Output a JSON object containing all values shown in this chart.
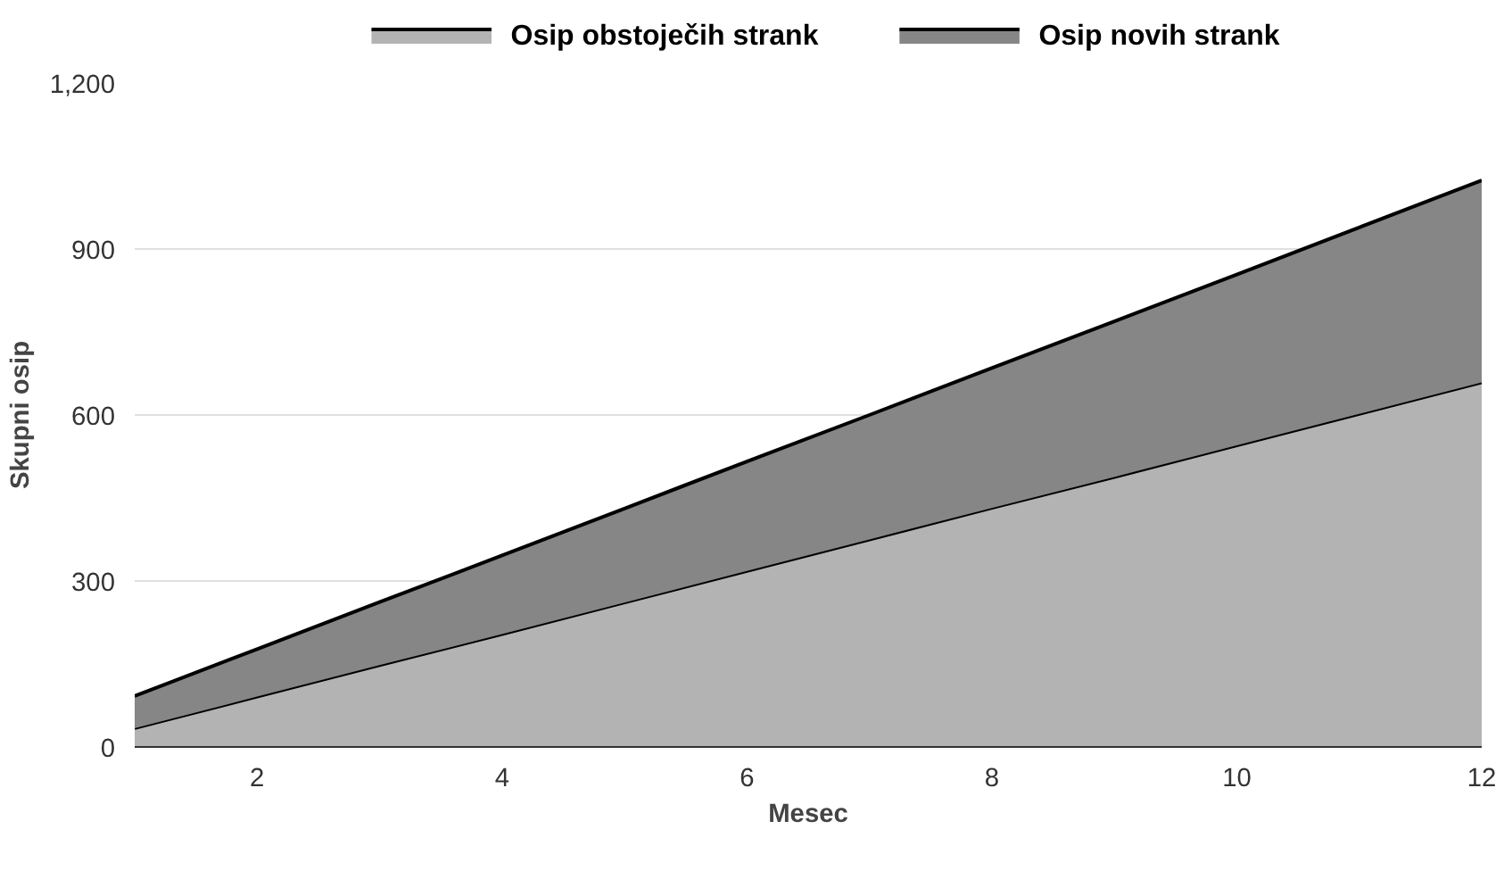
{
  "chart_data": {
    "type": "area",
    "stacked": true,
    "xlabel": "Mesec",
    "ylabel": "Skupni osip",
    "x": [
      1,
      2,
      3,
      4,
      5,
      6,
      7,
      8,
      9,
      10,
      11,
      12
    ],
    "series": [
      {
        "name": "Osip obstoječih strank",
        "color": "#b3b3b3",
        "values": [
          34,
          91,
          148,
          204,
          261,
          318,
          375,
          432,
          488,
          545,
          602,
          659
        ]
      },
      {
        "name": "Osip novih strank",
        "color": "#868686",
        "values": [
          58,
          86,
          114,
          142,
          170,
          198,
          225,
          253,
          281,
          309,
          337,
          365
        ]
      }
    ],
    "xlim": [
      1,
      12
    ],
    "xticks": [
      2,
      4,
      6,
      8,
      10,
      12
    ],
    "ylim": [
      0,
      1200
    ],
    "yticks": [
      0,
      300,
      600,
      900,
      {
        "value": 1200,
        "label": "1,200"
      }
    ],
    "grid": "y",
    "legend": "top"
  }
}
